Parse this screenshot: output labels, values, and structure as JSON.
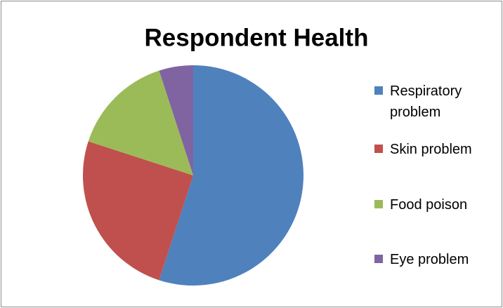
{
  "chart_data": {
    "type": "pie",
    "title": "Respondent Health",
    "categories": [
      "Respiratory problem",
      "Skin problem",
      "Food poison",
      "Eye problem"
    ],
    "values": [
      55,
      25,
      15,
      5
    ],
    "colors": [
      "#4f81bd",
      "#c0504d",
      "#9bbb59",
      "#8064a2"
    ],
    "legend": "right"
  }
}
